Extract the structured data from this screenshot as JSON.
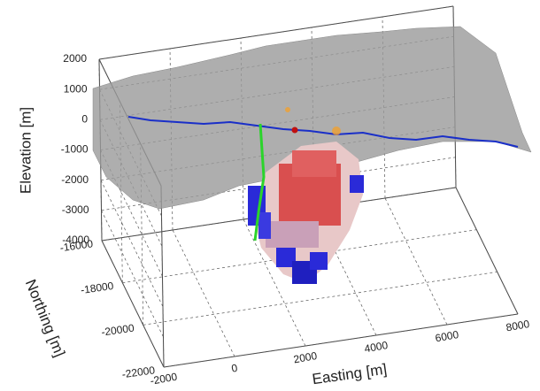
{
  "chart_data": {
    "type": "surface3d",
    "xlabel": "Easting [m]",
    "ylabel": "Northing [m]",
    "zlabel": "Elevation [m]",
    "xlim": [
      -2000,
      8000
    ],
    "xticks": [
      -2000,
      0,
      2000,
      4000,
      6000,
      8000
    ],
    "ylim": [
      -22000,
      -16000
    ],
    "yticks": [
      -22000,
      -20000,
      -18000,
      -16000
    ],
    "zlim": [
      -4000,
      2000
    ],
    "zticks": [
      -4000,
      -3000,
      -2000,
      -1000,
      0,
      1000,
      2000
    ],
    "grid": true
  }
}
